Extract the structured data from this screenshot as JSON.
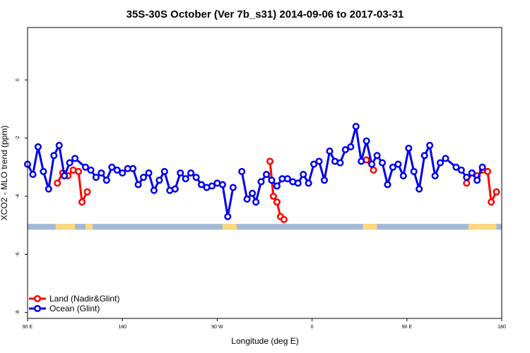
{
  "chart_data": {
    "type": "line",
    "title": "35S-30S October (Ver 7b_s31)   2014-09-06 to 2017-03-31",
    "xlabel": "Longitude (deg E)",
    "ylabel": "XCO2 - MLO trend (ppm)",
    "xlim": [
      -90,
      180
    ],
    "ylim": [
      -8.2,
      1.8
    ],
    "x_ticks": [
      {
        "value": -90,
        "label": "90 E"
      },
      {
        "value": -36,
        "label": "180"
      },
      {
        "value": 18,
        "label": "90 W"
      },
      {
        "value": 72,
        "label": "0"
      },
      {
        "value": 126,
        "label": "90 E"
      },
      {
        "value": 180,
        "label": "180"
      }
    ],
    "y_ticks": [
      {
        "value": 0,
        "label": "0"
      },
      {
        "value": -2,
        "label": "-2"
      },
      {
        "value": -4,
        "label": "-4"
      },
      {
        "value": -6,
        "label": "-6"
      },
      {
        "value": -8,
        "label": "-8"
      }
    ],
    "grid": false,
    "legend_position": "bottom-left",
    "land_band": {
      "y_top": -4.95,
      "y_bottom": -5.15,
      "ocean_color": "#a3b9d9",
      "land_color": "#fcd97e",
      "land_segments": [
        [
          -74,
          -63
        ],
        [
          -57,
          -53
        ],
        [
          21,
          29
        ],
        [
          101,
          109
        ],
        [
          161,
          177
        ]
      ]
    },
    "series": [
      {
        "name": "Land (Nadir&Glint)",
        "color": "#ff0000",
        "segments": [
          [
            [
              -73,
              -3.55
            ],
            [
              -70,
              -3.2
            ],
            [
              -67,
              -3.3
            ],
            [
              -64,
              -3.1
            ],
            [
              -61,
              -3.15
            ],
            [
              -59,
              -4.2
            ],
            [
              -56,
              -3.85
            ]
          ],
          [
            [
              48,
              -2.8
            ],
            [
              50,
              -4.0
            ],
            [
              52,
              -4.2
            ],
            [
              54,
              -4.7
            ],
            [
              56,
              -4.8
            ]
          ],
          [
            [
              103,
              -2.75
            ],
            [
              107,
              -3.1
            ]
          ],
          [
            [
              160,
              -3.55
            ],
            [
              163,
              -3.2
            ],
            [
              166,
              -3.3
            ],
            [
              169,
              -3.1
            ],
            [
              172,
              -3.15
            ],
            [
              174,
              -4.2
            ],
            [
              177,
              -3.85
            ]
          ]
        ]
      },
      {
        "name": "Ocean (Glint)",
        "color": "#0000ee",
        "segments": [
          [
            [
              -90,
              -2.9
            ],
            [
              -87,
              -3.25
            ],
            [
              -84,
              -2.3
            ],
            [
              -81,
              -3.15
            ],
            [
              -78,
              -3.75
            ],
            [
              -75,
              -2.6
            ],
            [
              -72,
              -2.25
            ],
            [
              -69,
              -3.3
            ],
            [
              -66,
              -2.85
            ],
            [
              -63,
              -2.7
            ],
            [
              -57,
              -3.0
            ],
            [
              -54,
              -3.1
            ],
            [
              -51,
              -3.35
            ],
            [
              -48,
              -3.2
            ],
            [
              -45,
              -3.45
            ],
            [
              -42,
              -3.0
            ],
            [
              -39,
              -3.1
            ],
            [
              -36,
              -3.2
            ],
            [
              -33,
              -3.05
            ],
            [
              -30,
              -3.05
            ],
            [
              -27,
              -3.6
            ],
            [
              -24,
              -3.35
            ],
            [
              -21,
              -3.2
            ],
            [
              -18,
              -3.8
            ],
            [
              -15,
              -3.45
            ],
            [
              -12,
              -3.15
            ],
            [
              -9,
              -3.8
            ],
            [
              -6,
              -3.75
            ],
            [
              -3,
              -3.2
            ],
            [
              0,
              -3.4
            ],
            [
              3,
              -3.2
            ],
            [
              6,
              -3.35
            ],
            [
              9,
              -3.6
            ],
            [
              12,
              -3.7
            ],
            [
              15,
              -3.65
            ],
            [
              18,
              -3.55
            ],
            [
              21,
              -3.6
            ],
            [
              24,
              -4.7
            ],
            [
              27,
              -3.7
            ]
          ],
          [
            [
              32,
              -3.15
            ],
            [
              35,
              -4.1
            ],
            [
              38,
              -3.9
            ],
            [
              40,
              -4.2
            ],
            [
              43,
              -3.5
            ],
            [
              46,
              -3.25
            ],
            [
              49,
              -3.45
            ],
            [
              52,
              -3.65
            ],
            [
              55,
              -3.4
            ],
            [
              58,
              -3.4
            ],
            [
              61,
              -3.5
            ],
            [
              64,
              -3.55
            ],
            [
              67,
              -3.25
            ],
            [
              70,
              -3.55
            ],
            [
              73,
              -2.9
            ],
            [
              76,
              -2.8
            ],
            [
              79,
              -3.45
            ],
            [
              82,
              -2.45
            ],
            [
              85,
              -2.8
            ],
            [
              88,
              -2.85
            ],
            [
              91,
              -2.4
            ],
            [
              94,
              -2.3
            ],
            [
              97,
              -1.6
            ],
            [
              100,
              -2.8
            ],
            [
              103,
              -2.1
            ],
            [
              106,
              -2.9
            ],
            [
              109,
              -2.6
            ],
            [
              112,
              -2.85
            ],
            [
              115,
              -3.6
            ],
            [
              118,
              -3.0
            ],
            [
              121,
              -2.9
            ],
            [
              124,
              -3.3
            ],
            [
              127,
              -2.35
            ],
            [
              130,
              -3.15
            ],
            [
              133,
              -3.75
            ],
            [
              136,
              -2.6
            ],
            [
              139,
              -2.25
            ],
            [
              142,
              -3.3
            ],
            [
              145,
              -2.85
            ],
            [
              148,
              -2.7
            ],
            [
              154,
              -3.0
            ],
            [
              157,
              -3.1
            ],
            [
              160,
              -3.35
            ],
            [
              163,
              -3.2
            ],
            [
              166,
              -3.45
            ],
            [
              169,
              -3.0
            ]
          ]
        ]
      }
    ]
  }
}
